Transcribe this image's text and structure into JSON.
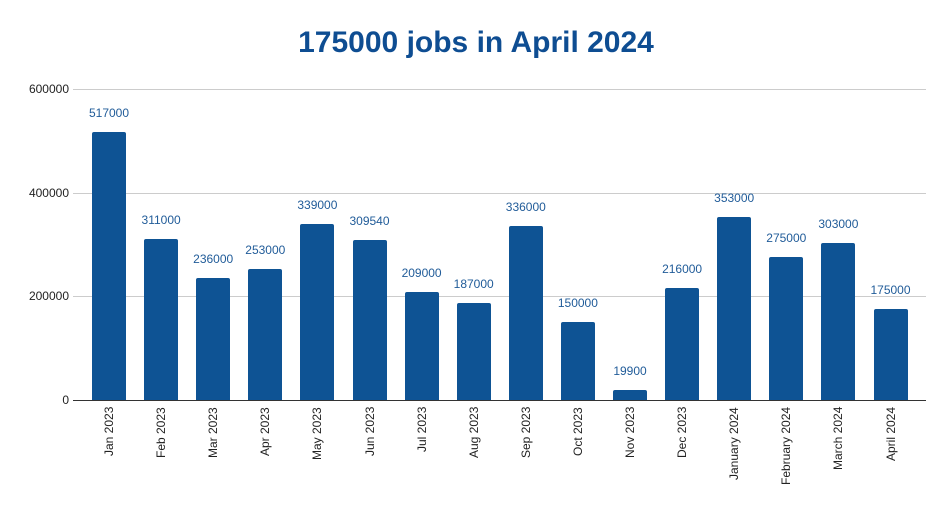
{
  "chart_data": {
    "type": "bar",
    "title": "175000 jobs in April 2024",
    "xlabel": "",
    "ylabel": "",
    "ylim": [
      0,
      600000
    ],
    "yticks": [
      0,
      200000,
      400000,
      600000
    ],
    "ytick_labels": [
      "0",
      "200000",
      "400000",
      "600000"
    ],
    "grid": true,
    "legend": null,
    "data_labels": true,
    "bar_color": "#0e5394",
    "title_color": "#0e4d92",
    "label_color": "#215c99",
    "categories": [
      "Jan 2023",
      "Feb 2023",
      "Mar 2023",
      "Apr 2023",
      "May 2023",
      "Jun 2023",
      "Jul 2023",
      "Aug 2023",
      "Sep 2023",
      "Oct 2023",
      "Nov 2023",
      "Dec 2023",
      "January 2024",
      "February 2024",
      "March 2024",
      "April 2024"
    ],
    "values": [
      517000,
      311000,
      236000,
      253000,
      339000,
      309540,
      209000,
      187000,
      336000,
      150000,
      19900,
      216000,
      353000,
      275000,
      303000,
      175000
    ],
    "value_labels": [
      "517000",
      "311000",
      "236000",
      "253000",
      "339000",
      "309540",
      "209000",
      "187000",
      "336000",
      "150000",
      "19900",
      "216000",
      "353000",
      "275000",
      "303000",
      "175000"
    ]
  }
}
